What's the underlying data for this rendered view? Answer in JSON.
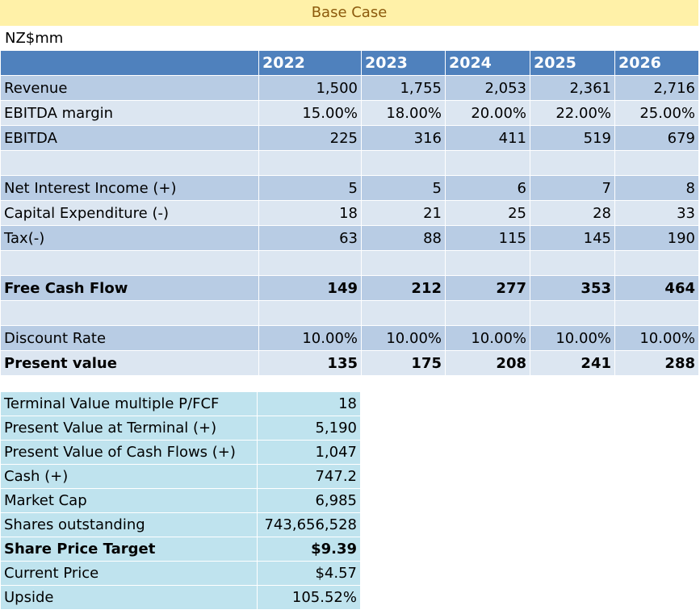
{
  "title": "Base Case",
  "unit": "NZ$mm",
  "years": [
    "2022",
    "2023",
    "2024",
    "2025",
    "2026"
  ],
  "rows": [
    {
      "label": "Revenue",
      "values": [
        "1,500",
        "1,755",
        "2,053",
        "2,361",
        "2,716"
      ],
      "bold": false
    },
    {
      "label": "EBITDA  margin",
      "values": [
        "15.00%",
        "18.00%",
        "20.00%",
        "22.00%",
        "25.00%"
      ],
      "bold": false
    },
    {
      "label": "EBITDA",
      "values": [
        "225",
        "316",
        "411",
        "519",
        "679"
      ],
      "bold": false
    },
    {
      "label": "",
      "values": [
        "",
        "",
        "",
        "",
        ""
      ],
      "bold": false
    },
    {
      "label": "Net Interest Income (+)",
      "values": [
        "5",
        "5",
        "6",
        "7",
        "8"
      ],
      "bold": false
    },
    {
      "label": "Capital Expenditure (-)",
      "values": [
        "18",
        "21",
        "25",
        "28",
        "33"
      ],
      "bold": false
    },
    {
      "label": "Tax(-)",
      "values": [
        "63",
        "88",
        "115",
        "145",
        "190"
      ],
      "bold": false
    },
    {
      "label": "",
      "values": [
        "",
        "",
        "",
        "",
        ""
      ],
      "bold": false
    },
    {
      "label": "Free Cash Flow",
      "values": [
        "149",
        "212",
        "277",
        "353",
        "464"
      ],
      "bold": true
    },
    {
      "label": "",
      "values": [
        "",
        "",
        "",
        "",
        ""
      ],
      "bold": false
    },
    {
      "label": "Discount Rate",
      "values": [
        "10.00%",
        "10.00%",
        "10.00%",
        "10.00%",
        "10.00%"
      ],
      "bold": false
    },
    {
      "label": "Present value",
      "values": [
        "135",
        "175",
        "208",
        "241",
        "288"
      ],
      "bold": true
    }
  ],
  "summary": [
    {
      "label": "Terminal Value multiple P/FCF",
      "value": "18",
      "bold": false
    },
    {
      "label": "Present Value at Terminal (+)",
      "value": "5,190",
      "bold": false
    },
    {
      "label": "Present Value of Cash Flows (+)",
      "value": "1,047",
      "bold": false
    },
    {
      "label": "Cash (+)",
      "value": "747.2",
      "bold": false
    },
    {
      "label": "Market Cap",
      "value": "6,985",
      "bold": false
    },
    {
      "label": "Shares outstanding",
      "value": "743,656,528",
      "bold": false
    },
    {
      "label": "Share Price Target",
      "value": "$9.39",
      "bold": true
    },
    {
      "label": "Current Price",
      "value": "$4.57",
      "bold": false
    },
    {
      "label": "Upside",
      "value": "105.52%",
      "bold": false
    }
  ]
}
